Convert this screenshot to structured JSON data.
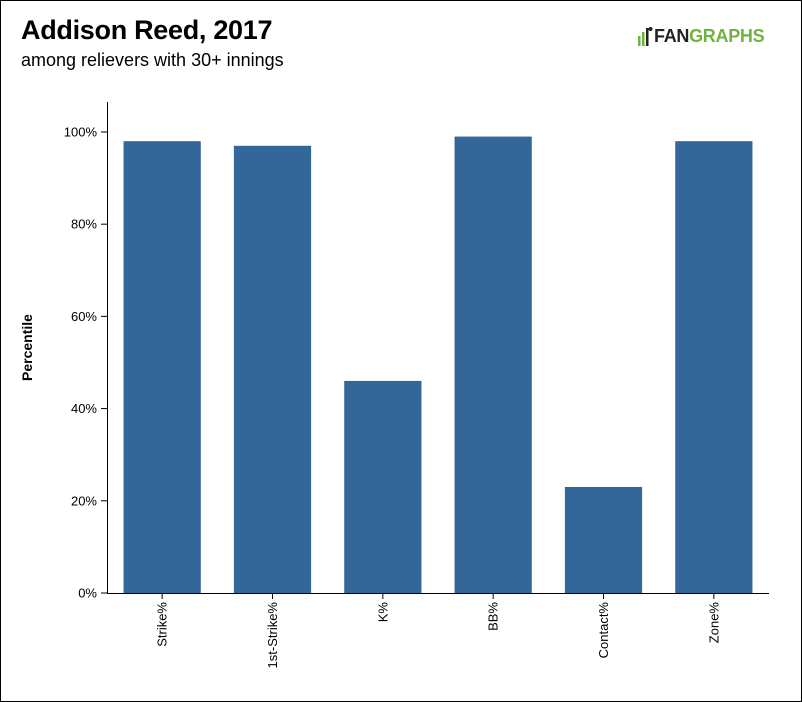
{
  "header": {
    "title": "Addison Reed, 2017",
    "subtitle": "among relievers with 30+ innings"
  },
  "logo": {
    "icon": "fangraphs-logo-icon",
    "word_part1": "FAN",
    "word_part2": "GRAPHS",
    "color_dark": "#222222",
    "color_green": "#6fb43f"
  },
  "chart_data": {
    "type": "bar",
    "categories": [
      "Strike%",
      "1st-Strike%",
      "K%",
      "BB%",
      "Contact%",
      "Zone%"
    ],
    "values": [
      98,
      97,
      46,
      99,
      23,
      98
    ],
    "ylabel": "Percentile",
    "ylim": [
      0,
      106.5
    ],
    "yticks": [
      0,
      20,
      40,
      60,
      80,
      100
    ],
    "ytick_labels": [
      "0%",
      "20%",
      "40%",
      "60%",
      "80%",
      "100%"
    ],
    "bar_color": "#336699",
    "grid": false,
    "legend": "none"
  }
}
